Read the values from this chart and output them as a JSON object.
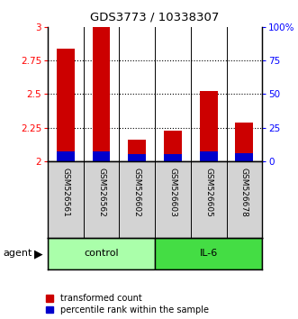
{
  "title": "GDS3773 / 10338307",
  "samples": [
    "GSM526561",
    "GSM526562",
    "GSM526602",
    "GSM526603",
    "GSM526605",
    "GSM526678"
  ],
  "groups": [
    "control",
    "control",
    "control",
    "IL-6",
    "IL-6",
    "IL-6"
  ],
  "transformed_counts": [
    2.84,
    3.0,
    2.16,
    2.23,
    2.52,
    2.29
  ],
  "percentile_ranks": [
    7,
    7,
    5,
    5,
    7,
    6
  ],
  "ylim": [
    2.0,
    3.0
  ],
  "yticks": [
    2.0,
    2.25,
    2.5,
    2.75,
    3.0
  ],
  "ytick_labels": [
    "2",
    "2.25",
    "2.5",
    "2.75",
    "3"
  ],
  "right_yticks": [
    0,
    25,
    50,
    75,
    100
  ],
  "right_ytick_labels": [
    "0",
    "25",
    "50",
    "75",
    "100%"
  ],
  "bar_width": 0.5,
  "red_color": "#cc0000",
  "blue_color": "#0000cc",
  "control_color": "#aaffaa",
  "il6_color": "#44dd44",
  "bg_color": "#ffffff",
  "label_bg": "#d3d3d3",
  "grid_dotted_ticks": [
    2.25,
    2.5,
    2.75
  ]
}
